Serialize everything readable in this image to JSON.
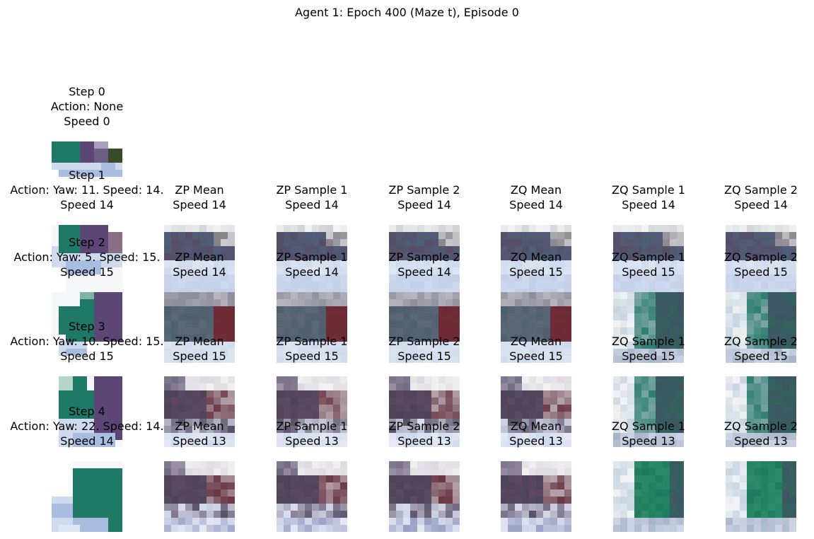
{
  "suptitle": "Agent 1: Epoch 400 (Maze t), Episode 0",
  "chart_data": {
    "type": "image_grid",
    "title": "Agent 1: Epoch 400 (Maze t), Episode 0",
    "rows": [
      {
        "step": "Step 0",
        "action": "Action: None",
        "speed": "Speed 0",
        "panels": []
      },
      {
        "step": "Step 1",
        "action": "Action: Yaw: 11. Speed: 14.",
        "speed": "Speed 14",
        "panels": [
          {
            "title": "ZP Mean",
            "speed": "Speed 14"
          },
          {
            "title": "ZP Sample 1",
            "speed": "Speed 14"
          },
          {
            "title": "ZP Sample 2",
            "speed": "Speed 14"
          },
          {
            "title": "ZQ Mean",
            "speed": "Speed 14"
          },
          {
            "title": "ZQ Sample 1",
            "speed": "Speed 14"
          },
          {
            "title": "ZQ Sample 2",
            "speed": "Speed 14"
          }
        ]
      },
      {
        "step": "Step 2",
        "action": "Action: Yaw: 5. Speed: 15.",
        "speed": "Speed 15",
        "panels": [
          {
            "title": "ZP Mean",
            "speed": "Speed 14"
          },
          {
            "title": "ZP Sample 1",
            "speed": "Speed 14"
          },
          {
            "title": "ZP Sample 2",
            "speed": "Speed 14"
          },
          {
            "title": "ZQ Mean",
            "speed": "Speed 15"
          },
          {
            "title": "ZQ Sample 1",
            "speed": "Speed 15"
          },
          {
            "title": "ZQ Sample 2",
            "speed": "Speed 15"
          }
        ]
      },
      {
        "step": "Step 3",
        "action": "Action: Yaw: 10. Speed: 15.",
        "speed": "Speed 15",
        "panels": [
          {
            "title": "ZP Mean",
            "speed": "Speed 15"
          },
          {
            "title": "ZP Sample 1",
            "speed": "Speed 15"
          },
          {
            "title": "ZP Sample 2",
            "speed": "Speed 15"
          },
          {
            "title": "ZQ Mean",
            "speed": "Speed 15"
          },
          {
            "title": "ZQ Sample 1",
            "speed": "Speed 15"
          },
          {
            "title": "ZQ Sample 2",
            "speed": "Speed 15"
          }
        ]
      },
      {
        "step": "Step 4",
        "action": "Action: Yaw: 22. Speed: 14.",
        "speed": "Speed 14",
        "panels": [
          {
            "title": "ZP Mean",
            "speed": "Speed 13"
          },
          {
            "title": "ZP Sample 1",
            "speed": "Speed 13"
          },
          {
            "title": "ZP Sample 2",
            "speed": "Speed 13"
          },
          {
            "title": "ZQ Mean",
            "speed": "Speed 13"
          },
          {
            "title": "ZQ Sample 1",
            "speed": "Speed 13"
          },
          {
            "title": "ZQ Sample 2",
            "speed": "Speed 13"
          }
        ]
      }
    ],
    "colors": {
      "green": "#1e7a66",
      "purple": "#5b4676",
      "light_blue": "#a8bde0",
      "pale_blue": "#cfdaee",
      "slate": "#4f5f78",
      "maroon": "#6e2a35",
      "white": "#f6f7f8"
    }
  }
}
